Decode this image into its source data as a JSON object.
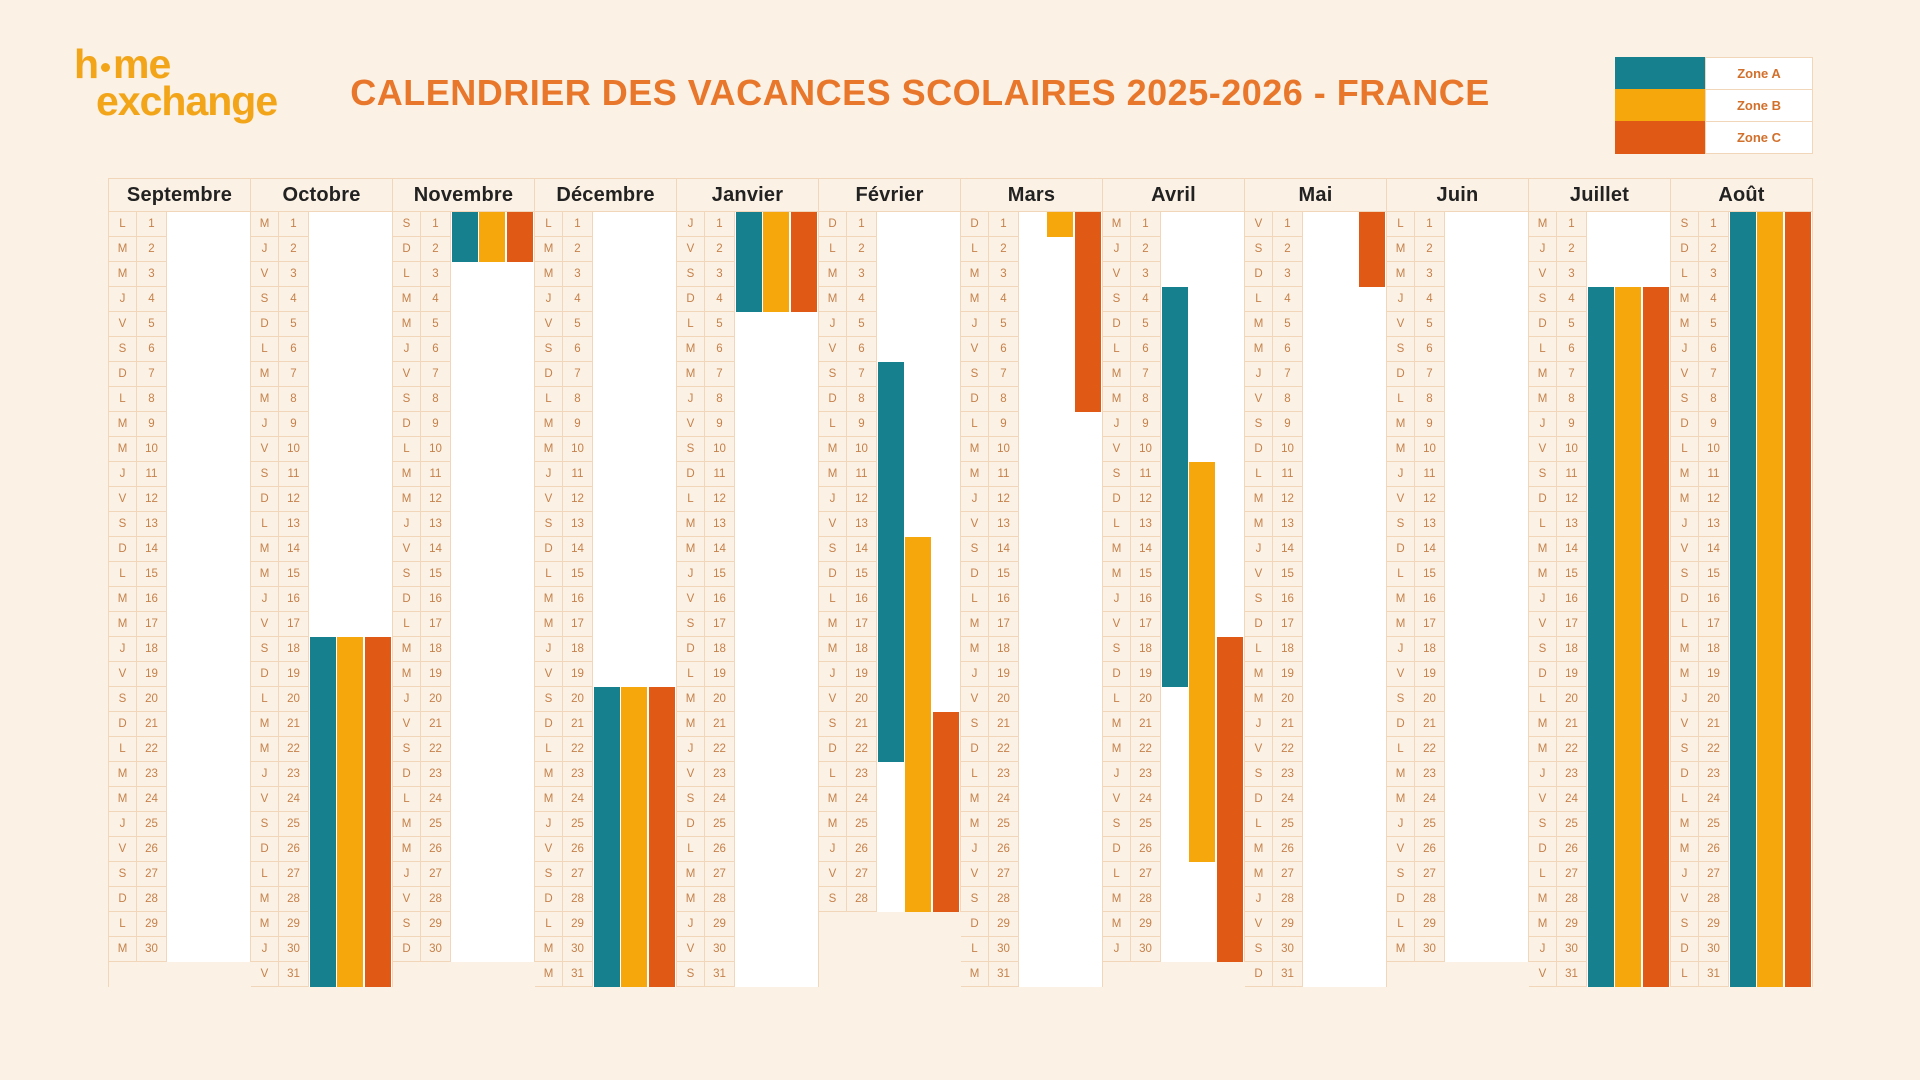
{
  "header": {
    "logo": {
      "word1_start": "h",
      "word1_end": "me",
      "word2": "exchange",
      "color": "#F3A51A"
    },
    "title": "CALENDRIER DES VACANCES SCOLAIRES 2025-2026 - FRANCE",
    "title_color": "#E8772B"
  },
  "legend": {
    "items": [
      {
        "zone": "A",
        "label": "Zone A",
        "color": "#16808F"
      },
      {
        "zone": "B",
        "label": "Zone B",
        "color": "#F5A70B"
      },
      {
        "zone": "C",
        "label": "Zone C",
        "color": "#E05A16"
      }
    ]
  },
  "calendar": {
    "zone_order": [
      "A",
      "B",
      "C"
    ],
    "months": [
      {
        "name": "Septembre",
        "letters": "LMMJVSDLMMJVSDLMMJVSDLMMJVSDLM",
        "zones": {
          "A": [],
          "B": [],
          "C": []
        }
      },
      {
        "name": "Octobre",
        "letters": "MJVSDLMMJVSDLMMJVSDLMMJVSDLMMJV",
        "zones": {
          "A": [
            [
              18,
              31
            ]
          ],
          "B": [
            [
              18,
              31
            ]
          ],
          "C": [
            [
              18,
              31
            ]
          ]
        }
      },
      {
        "name": "Novembre",
        "letters": "SDLMMJVSDLMMJVSDLMMJVSDLMMJVSD",
        "zones": {
          "A": [
            [
              1,
              2
            ]
          ],
          "B": [
            [
              1,
              2
            ]
          ],
          "C": [
            [
              1,
              2
            ]
          ]
        }
      },
      {
        "name": "Décembre",
        "letters": "LMMJVSDLMMJVSDLMMJVSDLMMJVSDLMM",
        "zones": {
          "A": [
            [
              20,
              31
            ]
          ],
          "B": [
            [
              20,
              31
            ]
          ],
          "C": [
            [
              20,
              31
            ]
          ]
        }
      },
      {
        "name": "Janvier",
        "letters": "JVSDLMMJVSDLMMJVSDLMMJVSDLMMJVS",
        "zones": {
          "A": [
            [
              1,
              4
            ]
          ],
          "B": [
            [
              1,
              4
            ]
          ],
          "C": [
            [
              1,
              4
            ]
          ]
        }
      },
      {
        "name": "Février",
        "letters": "DLMMJVSDLMMJVSDLMMJVSDLMMJVS",
        "zones": {
          "A": [
            [
              7,
              22
            ]
          ],
          "B": [
            [
              14,
              28
            ]
          ],
          "C": [
            [
              21,
              28
            ]
          ]
        }
      },
      {
        "name": "Mars",
        "letters": "DLMMJVSDLMMJVSDLMMJVSDLMMJVSDLM",
        "zones": {
          "A": [],
          "B": [
            [
              1,
              1
            ]
          ],
          "C": [
            [
              1,
              8
            ]
          ]
        }
      },
      {
        "name": "Avril",
        "letters": "MJVSDLMMJVSDLMMJVSDLMMJVSDLMMJ",
        "zones": {
          "A": [
            [
              4,
              19
            ]
          ],
          "B": [
            [
              11,
              26
            ]
          ],
          "C": [
            [
              18,
              30
            ]
          ]
        }
      },
      {
        "name": "Mai",
        "letters": "VSDLMMJVSDLMMJVSDLMMJVSDLMMJVSD",
        "zones": {
          "A": [],
          "B": [],
          "C": [
            [
              1,
              3
            ]
          ]
        }
      },
      {
        "name": "Juin",
        "letters": "LMMJVSDLMMJVSDLMMJVSDLMMJVSDLM",
        "zones": {
          "A": [],
          "B": [],
          "C": []
        }
      },
      {
        "name": "Juillet",
        "letters": "MJVSDLMMJVSDLMMJVSDLMMJVSDLMMJV",
        "zones": {
          "A": [
            [
              4,
              31
            ]
          ],
          "B": [
            [
              4,
              31
            ]
          ],
          "C": [
            [
              4,
              31
            ]
          ]
        }
      },
      {
        "name": "Août",
        "letters": "SDLMMJVSDLMMJVSDLMMJVSDLMMJVSDL",
        "zones": {
          "A": [
            [
              1,
              31
            ]
          ],
          "B": [
            [
              1,
              31
            ]
          ],
          "C": [
            [
              1,
              31
            ]
          ]
        }
      }
    ]
  }
}
